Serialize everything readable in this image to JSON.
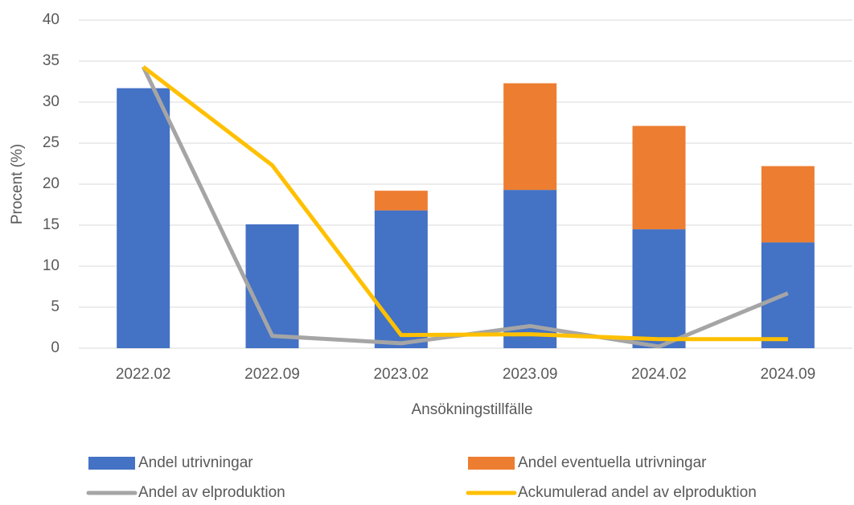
{
  "chart_data": {
    "type": "bar",
    "x_label": "Ansökningstillfälle",
    "y_label": "Procent (%)",
    "categories": [
      "2022.02",
      "2022.09",
      "2023.02",
      "2023.09",
      "2024.02",
      "2024.09"
    ],
    "series": [
      {
        "name": "Andel utrivningar",
        "type": "bar",
        "color": "#4472c4",
        "values": [
          31.7,
          15.1,
          16.8,
          19.3,
          14.5,
          12.9
        ]
      },
      {
        "name": "Andel eventuella utrivningar",
        "type": "bar",
        "color": "#ed7d31",
        "values": [
          0,
          0,
          2.4,
          13.0,
          12.6,
          9.3
        ]
      },
      {
        "name": "Andel av elproduktion",
        "type": "line",
        "color": "#a5a5a5",
        "values": [
          34.3,
          1.5,
          0.6,
          2.7,
          0.2,
          6.7
        ]
      },
      {
        "name": "Ackumulerad andel av elproduktion",
        "type": "line",
        "color": "#ffc000",
        "values": [
          34.3,
          22.3,
          1.6,
          1.7,
          1.1,
          1.1
        ]
      }
    ],
    "stacked": true,
    "ylim": [
      0,
      40
    ],
    "yticks": [
      0,
      5,
      10,
      15,
      20,
      25,
      30,
      35,
      40
    ],
    "grid": true,
    "legend": "bottom"
  }
}
